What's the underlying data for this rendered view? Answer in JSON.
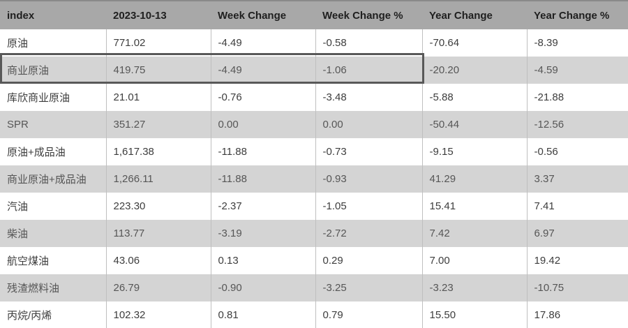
{
  "chart_data": {
    "type": "table",
    "title": "",
    "columns": [
      "index",
      "2023-10-13",
      "Week Change",
      "Week Change %",
      "Year Change",
      "Year Change %"
    ],
    "rows": [
      {
        "label": "原油",
        "values": [
          "771.02",
          "-4.49",
          "-0.58",
          "-70.64",
          "-8.39"
        ],
        "selected": false
      },
      {
        "label": "商业原油",
        "values": [
          "419.75",
          "-4.49",
          "-1.06",
          "-20.20",
          "-4.59"
        ],
        "selected": true
      },
      {
        "label": "库欣商业原油",
        "values": [
          "21.01",
          "-0.76",
          "-3.48",
          "-5.88",
          "-21.88"
        ],
        "selected": false
      },
      {
        "label": "SPR",
        "values": [
          "351.27",
          "0.00",
          "0.00",
          "-50.44",
          "-12.56"
        ],
        "selected": false
      },
      {
        "label": "原油+成品油",
        "values": [
          "1,617.38",
          "-11.88",
          "-0.73",
          "-9.15",
          "-0.56"
        ],
        "selected": false
      },
      {
        "label": "商业原油+成品油",
        "values": [
          "1,266.11",
          "-11.88",
          "-0.93",
          "41.29",
          "3.37"
        ],
        "selected": false
      },
      {
        "label": "汽油",
        "values": [
          "223.30",
          "-2.37",
          "-1.05",
          "15.41",
          "7.41"
        ],
        "selected": false
      },
      {
        "label": "柴油",
        "values": [
          "113.77",
          "-3.19",
          "-2.72",
          "7.42",
          "6.97"
        ],
        "selected": false
      },
      {
        "label": "航空煤油",
        "values": [
          "43.06",
          "0.13",
          "0.29",
          "7.00",
          "19.42"
        ],
        "selected": false
      },
      {
        "label": "残渣燃料油",
        "values": [
          "26.79",
          "-0.90",
          "-3.25",
          "-3.23",
          "-10.75"
        ],
        "selected": false
      },
      {
        "label": "丙烷/丙烯",
        "values": [
          "102.32",
          "0.81",
          "0.79",
          "15.50",
          "17.86"
        ],
        "selected": false
      }
    ],
    "selection": {
      "row_label": "商业原油",
      "columns_covered": [
        "index",
        "2023-10-13",
        "Week Change",
        "Week Change %"
      ]
    },
    "layout": {
      "zebra_striping": true,
      "grid_vertical_lines": true,
      "header_position": "top"
    }
  },
  "colors": {
    "header_bg": "#a8a8a8",
    "header_text": "#1f1f1f",
    "zebra_row_bg": "#d4d4d4",
    "white_row_bg": "#ffffff",
    "zebra_text": "#565656",
    "body_text": "#3d3d3d",
    "grid_line": "#bfbfbf",
    "selection_border": "#595959"
  }
}
